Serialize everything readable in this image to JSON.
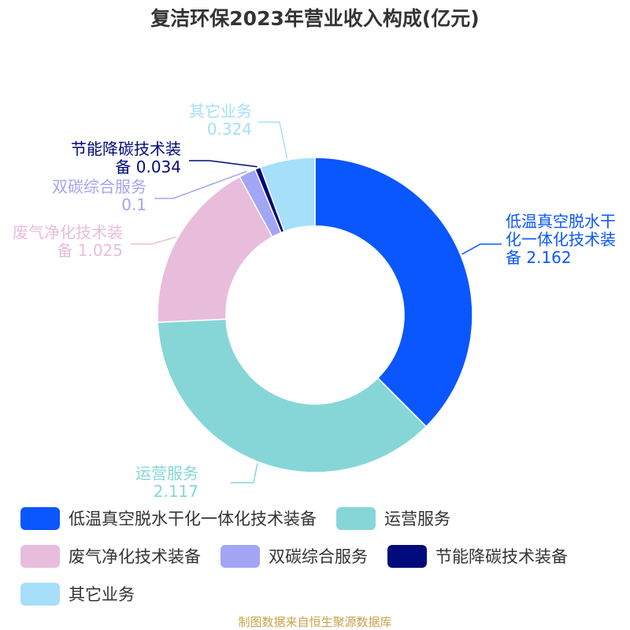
{
  "chart_data": {
    "type": "pie",
    "title": "复洁环保2023年营业收入构成(亿元)",
    "series": [
      {
        "name": "低温真空脱水干化一体化技术装备",
        "value": 2.162,
        "color": "#0a56ff"
      },
      {
        "name": "运营服务",
        "value": 2.117,
        "color": "#86d6d8"
      },
      {
        "name": "废气净化技术装备",
        "value": 1.025,
        "color": "#e8bddc"
      },
      {
        "name": "双碳综合服务",
        "value": 0.1,
        "color": "#a3a5f5"
      },
      {
        "name": "节能降碳技术装备",
        "value": 0.034,
        "color": "#000a7a"
      },
      {
        "name": "其它业务",
        "value": 0.324,
        "color": "#a5dff9"
      }
    ]
  },
  "slice_labels": [
    [
      "低温真空脱水干",
      "化一体化技术装",
      "备 2.162"
    ],
    [
      "运营服务",
      "2.117"
    ],
    [
      "废气净化技术装",
      "备 1.025"
    ],
    [
      "双碳综合服务",
      "0.1"
    ],
    [
      "节能降碳技术装",
      "备 0.034"
    ],
    [
      "其它业务",
      "0.324"
    ]
  ],
  "source_note": "制图数据来自恒生聚源数据库"
}
